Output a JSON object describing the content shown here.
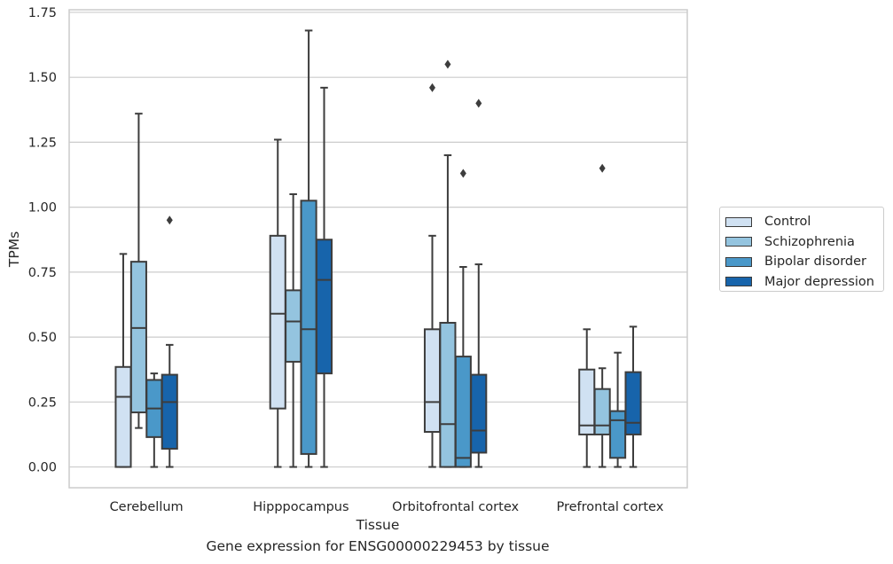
{
  "caption": "Gene expression for ENSG00000229453 by tissue",
  "chart_data": {
    "type": "box",
    "xlabel": "Tissue",
    "ylabel": "TPMs",
    "categories": [
      "Cerebellum",
      "Hipppocampus",
      "Orbitofrontal cortex",
      "Prefrontal cortex"
    ],
    "ylim": [
      -0.08,
      1.76
    ],
    "yticks": [
      "0.00",
      "0.25",
      "0.50",
      "0.75",
      "1.00",
      "1.25",
      "1.50",
      "1.75"
    ],
    "grid": true,
    "legend_position": "right",
    "series": [
      {
        "name": "Control",
        "color": "#d0e1f2",
        "boxes": [
          {
            "low": 0.0,
            "q1": 0.0,
            "median": 0.27,
            "q3": 0.385,
            "high": 0.82,
            "outliers": []
          },
          {
            "low": 0.0,
            "q1": 0.225,
            "median": 0.59,
            "q3": 0.89,
            "high": 1.26,
            "outliers": []
          },
          {
            "low": 0.0,
            "q1": 0.135,
            "median": 0.25,
            "q3": 0.53,
            "high": 0.89,
            "outliers": [
              1.46
            ]
          },
          {
            "low": 0.0,
            "q1": 0.125,
            "median": 0.16,
            "q3": 0.375,
            "high": 0.53,
            "outliers": []
          }
        ]
      },
      {
        "name": "Schizophrenia",
        "color": "#94c4df",
        "boxes": [
          {
            "low": 0.15,
            "q1": 0.21,
            "median": 0.535,
            "q3": 0.79,
            "high": 1.36,
            "outliers": []
          },
          {
            "low": 0.0,
            "q1": 0.405,
            "median": 0.56,
            "q3": 0.68,
            "high": 1.05,
            "outliers": []
          },
          {
            "low": 0.0,
            "q1": 0.0,
            "median": 0.165,
            "q3": 0.555,
            "high": 1.2,
            "outliers": [
              1.55
            ]
          },
          {
            "low": 0.0,
            "q1": 0.125,
            "median": 0.16,
            "q3": 0.3,
            "high": 0.38,
            "outliers": [
              1.15
            ]
          }
        ]
      },
      {
        "name": "Bipolar disorder",
        "color": "#4a98c9",
        "boxes": [
          {
            "low": 0.0,
            "q1": 0.115,
            "median": 0.225,
            "q3": 0.335,
            "high": 0.36,
            "outliers": []
          },
          {
            "low": 0.0,
            "q1": 0.05,
            "median": 0.53,
            "q3": 1.025,
            "high": 1.68,
            "outliers": []
          },
          {
            "low": 0.0,
            "q1": 0.0,
            "median": 0.035,
            "q3": 0.425,
            "high": 0.77,
            "outliers": [
              1.13
            ]
          },
          {
            "low": 0.0,
            "q1": 0.035,
            "median": 0.18,
            "q3": 0.215,
            "high": 0.44,
            "outliers": []
          }
        ]
      },
      {
        "name": "Major depression",
        "color": "#1764ab",
        "boxes": [
          {
            "low": 0.0,
            "q1": 0.07,
            "median": 0.25,
            "q3": 0.355,
            "high": 0.47,
            "outliers": [
              0.95
            ]
          },
          {
            "low": 0.0,
            "q1": 0.36,
            "median": 0.72,
            "q3": 0.875,
            "high": 1.46,
            "outliers": []
          },
          {
            "low": 0.0,
            "q1": 0.055,
            "median": 0.14,
            "q3": 0.355,
            "high": 0.78,
            "outliers": [
              1.4
            ]
          },
          {
            "low": 0.0,
            "q1": 0.125,
            "median": 0.17,
            "q3": 0.365,
            "high": 0.54,
            "outliers": []
          }
        ]
      }
    ]
  }
}
